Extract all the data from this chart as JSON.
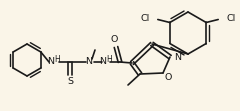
{
  "bg_color": "#faf5e8",
  "line_color": "#1a1a1a",
  "lw": 1.2,
  "fs": 6.8,
  "fs_small": 5.5,
  "figsize": [
    2.4,
    1.11
  ],
  "dpi": 100,
  "xlim": [
    0,
    240
  ],
  "ylim": [
    0,
    111
  ]
}
